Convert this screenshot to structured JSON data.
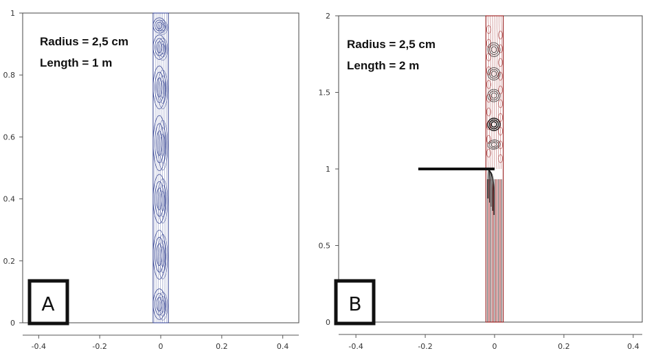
{
  "chart_data": [
    {
      "type": "contour",
      "panel_label": "A",
      "annotations": [
        "Radius = 2,5 cm",
        "Length = 1 m"
      ],
      "xlim": [
        -0.43,
        0.43
      ],
      "ylim": [
        0,
        1
      ],
      "xticks": [
        -0.4,
        -0.2,
        0,
        0.2,
        0.4
      ],
      "xtick_labels": [
        "-0.4",
        "-0.2",
        "0",
        "0.2",
        "0.4"
      ],
      "yticks": [
        0,
        0.2,
        0.4,
        0.6,
        0.8,
        1
      ],
      "ytick_labels": [
        "0",
        "0.2",
        "0.4",
        "0.6",
        "0.8",
        "1"
      ],
      "pipe_x": [
        -0.025,
        0.025
      ],
      "pipe_y": [
        0,
        1
      ],
      "line_color": "#2b3a8c",
      "cells": [
        {
          "cy": 0.96,
          "h": 0.05
        },
        {
          "cy": 0.89,
          "h": 0.08
        },
        {
          "cy": 0.76,
          "h": 0.14
        },
        {
          "cy": 0.58,
          "h": 0.18
        },
        {
          "cy": 0.4,
          "h": 0.16
        },
        {
          "cy": 0.22,
          "h": 0.16
        },
        {
          "cy": 0.06,
          "h": 0.1
        }
      ]
    },
    {
      "type": "contour",
      "panel_label": "B",
      "annotations": [
        "Radius = 2,5 cm",
        "Length = 2 m"
      ],
      "xlim": [
        -0.43,
        0.43
      ],
      "ylim": [
        0,
        2
      ],
      "xticks": [
        -0.4,
        -0.2,
        0,
        0.2,
        0.4
      ],
      "xtick_labels": [
        "-0.4",
        "-0.2",
        "0",
        "0.2",
        "0.4"
      ],
      "yticks": [
        0,
        0.5,
        1,
        1.5,
        2
      ],
      "ytick_labels": [
        "0",
        "0.5",
        "1",
        "1.5",
        "2"
      ],
      "pipe_x": [
        -0.025,
        0.025
      ],
      "pipe_y": [
        0,
        2
      ],
      "line_color": "#8b0000",
      "dark_color": "#333333",
      "side_branch": {
        "x0": -0.22,
        "x1": 0,
        "y": 1
      },
      "vortices": [
        {
          "cy": 1.78,
          "h": 0.09
        },
        {
          "cy": 1.62,
          "h": 0.08
        },
        {
          "cy": 1.48,
          "h": 0.08
        },
        {
          "cy": 1.29,
          "h": 0.08
        },
        {
          "cy": 1.16,
          "h": 0.06
        }
      ]
    }
  ]
}
